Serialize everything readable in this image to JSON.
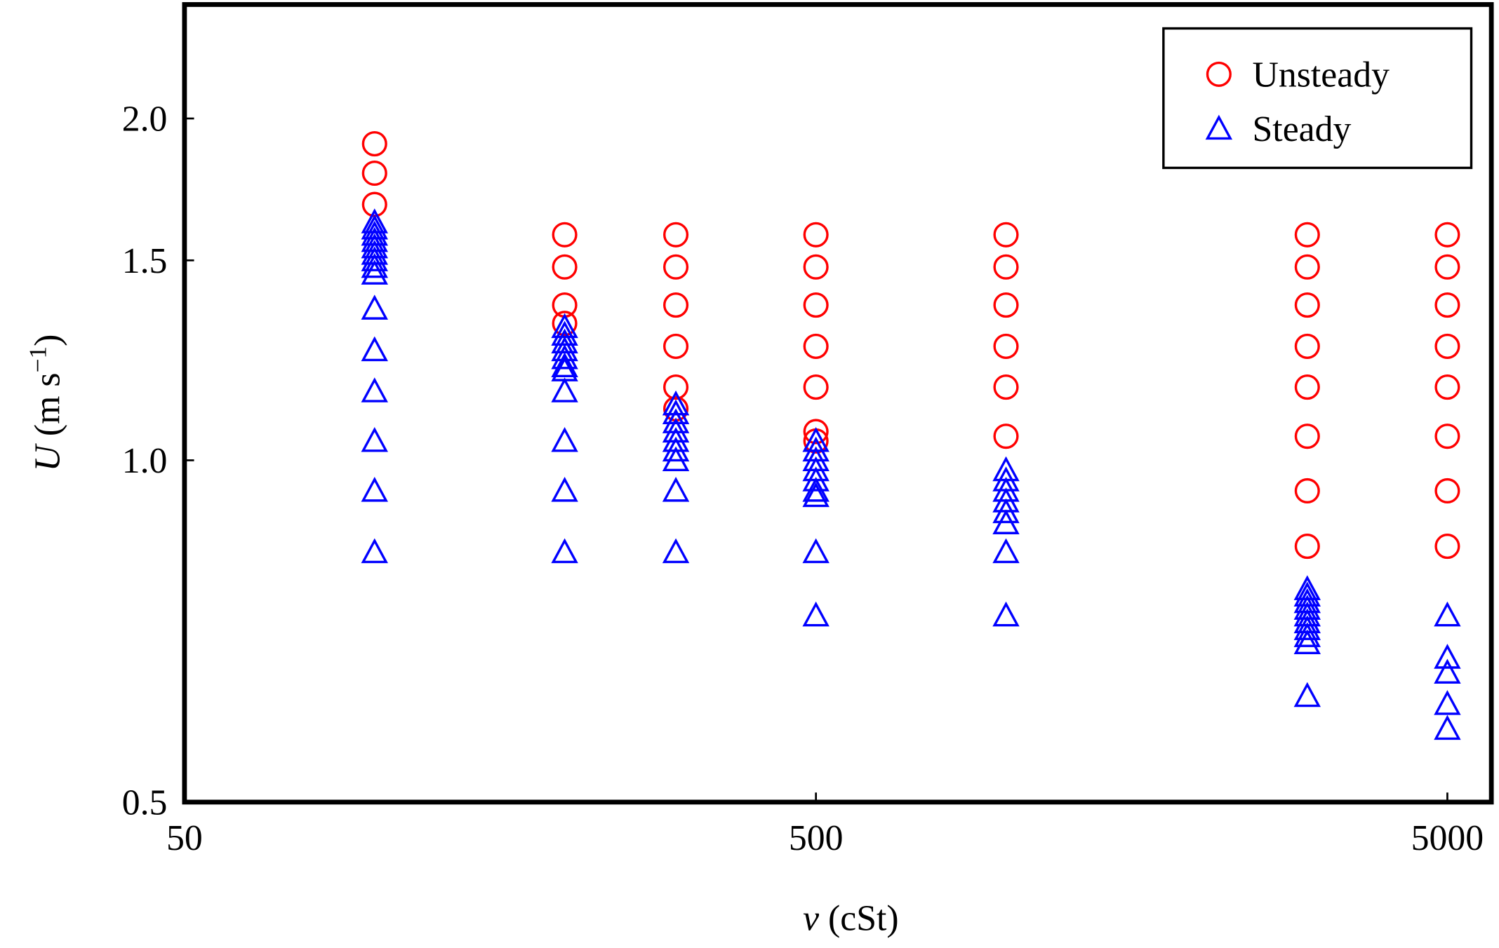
{
  "chart_data": {
    "type": "scatter",
    "xlabel": [
      "ν",
      "(cSt)"
    ],
    "ylabel": [
      "U",
      "(m s",
      "−1",
      ")"
    ],
    "xscale": "log",
    "yscale": "log",
    "xlim": [
      50,
      5870
    ],
    "ylim": [
      0.5,
      2.52
    ],
    "xticks": [
      50,
      500,
      5000
    ],
    "yticks": [
      {
        "value": 0.5,
        "label": "0.5"
      },
      {
        "value": 1,
        "label": "1.0"
      },
      {
        "value": 1.5,
        "label": "1.5"
      },
      {
        "value": 2,
        "label": "2.0"
      }
    ],
    "legend": "upper right",
    "series": [
      {
        "name": "Unsteady",
        "color": "#ff0000",
        "marker": "circle",
        "x": [
          100,
          100,
          100,
          200,
          200,
          200,
          200,
          300,
          300,
          300,
          300,
          300,
          300,
          500,
          500,
          500,
          500,
          500,
          500,
          500,
          1000,
          1000,
          1000,
          1000,
          1000,
          1000,
          3000,
          3000,
          3000,
          3000,
          3000,
          3000,
          3000,
          3000,
          5000,
          5000,
          5000,
          5000,
          5000,
          5000,
          5000,
          5000
        ],
        "values": [
          1.9,
          1.79,
          1.68,
          1.58,
          1.48,
          1.37,
          1.32,
          1.58,
          1.48,
          1.37,
          1.26,
          1.16,
          1.11,
          1.58,
          1.48,
          1.37,
          1.26,
          1.16,
          1.06,
          1.04,
          1.58,
          1.48,
          1.37,
          1.26,
          1.16,
          1.05,
          1.58,
          1.48,
          1.37,
          1.26,
          1.16,
          1.05,
          0.94,
          0.84,
          1.58,
          1.48,
          1.37,
          1.26,
          1.16,
          1.05,
          0.94,
          0.84
        ]
      },
      {
        "name": "Steady",
        "color": "#0000ff",
        "marker": "triangle",
        "x": [
          100,
          100,
          100,
          100,
          100,
          100,
          100,
          100,
          100,
          100,
          100,
          100,
          100,
          100,
          100,
          200,
          200,
          200,
          200,
          200,
          200,
          200,
          200,
          200,
          200,
          200,
          300,
          300,
          300,
          300,
          300,
          300,
          300,
          300,
          300,
          500,
          500,
          500,
          500,
          500,
          500,
          500,
          500,
          500,
          1000,
          1000,
          1000,
          1000,
          1000,
          1000,
          1000,
          1000,
          3000,
          3000,
          3000,
          3000,
          3000,
          3000,
          3000,
          3000,
          3000,
          3000,
          5000,
          5000,
          5000,
          5000,
          5000
        ],
        "values": [
          1.62,
          1.6,
          1.58,
          1.56,
          1.54,
          1.52,
          1.5,
          1.48,
          1.46,
          1.36,
          1.25,
          1.15,
          1.04,
          0.94,
          0.83,
          1.31,
          1.29,
          1.27,
          1.25,
          1.23,
          1.21,
          1.2,
          1.15,
          1.04,
          0.94,
          0.83,
          1.12,
          1.1,
          1.08,
          1.06,
          1.04,
          1.02,
          1.0,
          0.94,
          0.83,
          1.04,
          1.02,
          1.0,
          0.98,
          0.96,
          0.94,
          0.93,
          0.83,
          0.73,
          0.98,
          0.96,
          0.94,
          0.92,
          0.9,
          0.88,
          0.83,
          0.73,
          0.77,
          0.76,
          0.75,
          0.74,
          0.73,
          0.72,
          0.71,
          0.7,
          0.69,
          0.62,
          0.73,
          0.67,
          0.65,
          0.61,
          0.58
        ]
      }
    ]
  }
}
